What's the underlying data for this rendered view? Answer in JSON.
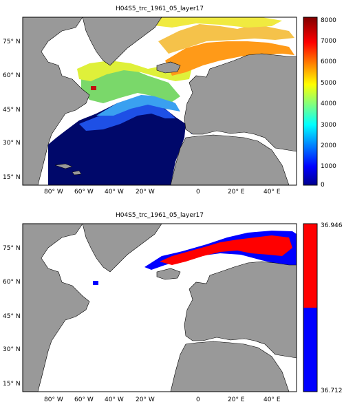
{
  "top_panel": {
    "title": "H04S5_trc_1961_05_layer17",
    "colorbar": {
      "colormap": "jet",
      "range": [
        0,
        8000
      ],
      "tick_labels": [
        "0",
        "1000",
        "2000",
        "3000",
        "4000",
        "5000",
        "6000",
        "7000",
        "8000"
      ]
    }
  },
  "bottom_panel": {
    "title": "H04S5_trc_1961_05_layer17",
    "colorbar": {
      "colors": [
        "#0000ff",
        "#ff0000"
      ],
      "tick_labels": [
        "36.946",
        "36.712"
      ]
    }
  },
  "map_axes": {
    "longitude_labels": [
      "80° W",
      "60° W",
      "40° W",
      "20° W",
      "0",
      "20° E",
      "40° E"
    ],
    "latitude_labels": [
      "75° N",
      "60° N",
      "45° N",
      "30° N",
      "15° N"
    ]
  },
  "colors": {
    "land": "#999999",
    "ocean_no_data": "#ffffff",
    "coastline": "#000000"
  }
}
